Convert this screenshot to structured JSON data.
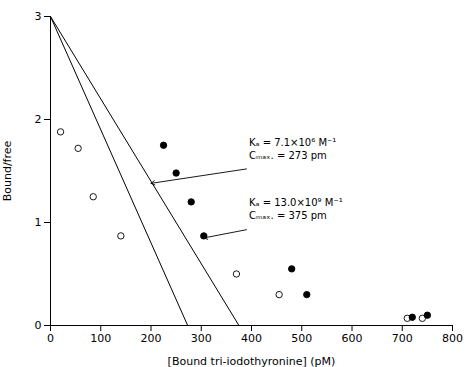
{
  "chart_data": {
    "type": "scatter",
    "xlabel": "[Bound tri-iodothyronine] (pM)",
    "ylabel": "Bound/free",
    "xlim": [
      0,
      800
    ],
    "ylim": [
      0,
      3
    ],
    "xticks": [
      0,
      100,
      200,
      300,
      400,
      500,
      600,
      700,
      800
    ],
    "yticks": [
      0,
      1,
      2,
      3
    ],
    "grid": false,
    "series": [
      {
        "type": "line",
        "color": "#000000",
        "x": [
          0,
          273
        ],
        "values": [
          3.0,
          0
        ]
      },
      {
        "type": "line",
        "color": "#000000",
        "x": [
          0,
          375
        ],
        "values": [
          3.0,
          0
        ]
      },
      {
        "type": "scatter",
        "marker": "open_circle",
        "color": "#000000",
        "x": [
          20,
          55,
          85,
          140,
          370,
          455,
          710,
          740
        ],
        "values": [
          1.88,
          1.72,
          1.25,
          0.87,
          0.5,
          0.3,
          0.07,
          0.07
        ]
      },
      {
        "type": "scatter",
        "marker": "filled_circle",
        "color": "#000000",
        "x": [
          225,
          250,
          280,
          305,
          480,
          510,
          720,
          750
        ],
        "values": [
          1.75,
          1.48,
          1.2,
          0.87,
          0.55,
          0.3,
          0.08,
          0.1
        ]
      }
    ],
    "annotations": [
      {
        "text": "Kₐ = 7.1×10⁶ M⁻¹\nCₘₐₓ. = 273 pm",
        "x": 395,
        "y": 1.62,
        "arrow": {
          "x1": 390,
          "y1": 1.52,
          "x2": 200,
          "y2": 1.38
        }
      },
      {
        "text": "Kₐ = 13.0×10⁹ M⁻¹\nCₘₐₓ. = 375 pm",
        "x": 395,
        "y": 1.03,
        "arrow": {
          "x1": 390,
          "y1": 0.93,
          "x2": 305,
          "y2": 0.85
        }
      }
    ]
  }
}
